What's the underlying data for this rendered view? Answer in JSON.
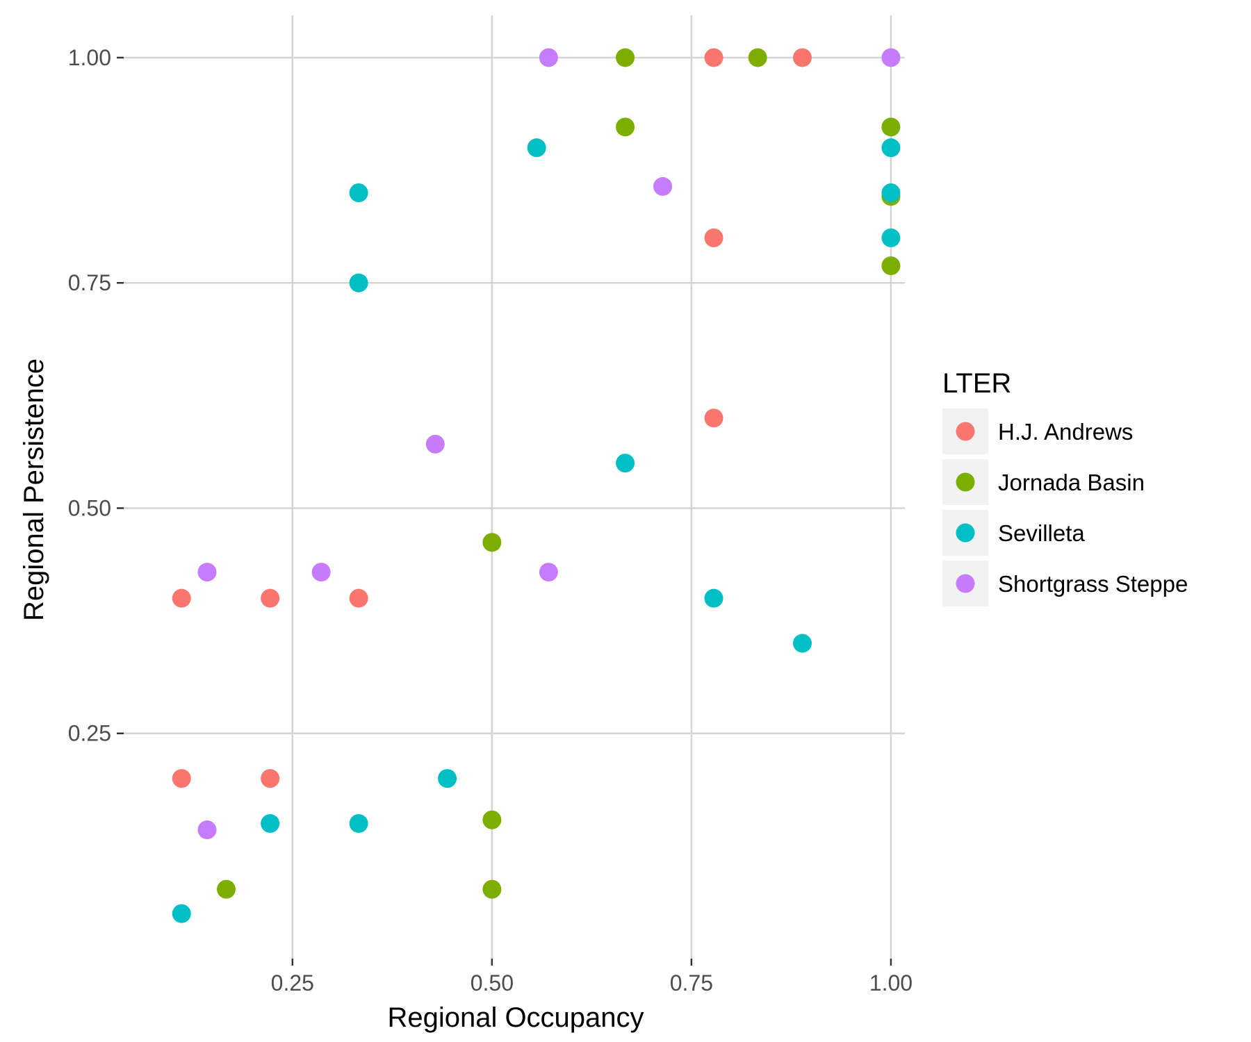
{
  "chart_data": {
    "type": "scatter",
    "title": "",
    "xlabel": "Regional Occupancy",
    "ylabel": "Regional Persistence",
    "xlim": [
      0.0385,
      1.0175
    ],
    "ylim": [
      0.0,
      1.047
    ],
    "xticks": [
      0.25,
      0.5,
      0.75,
      1.0
    ],
    "xtick_labels": [
      "0.25",
      "0.50",
      "0.75",
      "1.00"
    ],
    "yticks": [
      0.25,
      0.5,
      0.75,
      1.0
    ],
    "ytick_labels": [
      "0.25",
      "0.50",
      "0.75",
      "1.00"
    ],
    "grid": true,
    "legend": {
      "title": "LTER",
      "position": "right"
    },
    "series": [
      {
        "name": "H.J. Andrews",
        "color": "#F8766D",
        "points": [
          {
            "x": 0.111,
            "y": 0.4
          },
          {
            "x": 0.111,
            "y": 0.2
          },
          {
            "x": 0.222,
            "y": 0.4
          },
          {
            "x": 0.222,
            "y": 0.2
          },
          {
            "x": 0.333,
            "y": 0.4
          },
          {
            "x": 0.778,
            "y": 1.0
          },
          {
            "x": 0.778,
            "y": 0.8
          },
          {
            "x": 0.778,
            "y": 0.6
          },
          {
            "x": 0.889,
            "y": 1.0
          }
        ]
      },
      {
        "name": "Jornada Basin",
        "color": "#7CAE00",
        "points": [
          {
            "x": 0.667,
            "y": 1.0
          },
          {
            "x": 0.667,
            "y": 0.923
          },
          {
            "x": 0.833,
            "y": 1.0
          },
          {
            "x": 1.0,
            "y": 0.923
          },
          {
            "x": 1.0,
            "y": 0.846
          },
          {
            "x": 1.0,
            "y": 0.769
          },
          {
            "x": 0.5,
            "y": 0.462
          },
          {
            "x": 0.5,
            "y": 0.154
          },
          {
            "x": 0.5,
            "y": 0.077
          },
          {
            "x": 0.167,
            "y": 0.077
          }
        ]
      },
      {
        "name": "Sevilleta",
        "color": "#00BFC4",
        "points": [
          {
            "x": 0.556,
            "y": 0.9
          },
          {
            "x": 0.333,
            "y": 0.85
          },
          {
            "x": 0.333,
            "y": 0.75
          },
          {
            "x": 0.333,
            "y": 0.15
          },
          {
            "x": 1.0,
            "y": 0.9
          },
          {
            "x": 1.0,
            "y": 0.85
          },
          {
            "x": 1.0,
            "y": 0.8
          },
          {
            "x": 0.667,
            "y": 0.55
          },
          {
            "x": 0.778,
            "y": 0.4
          },
          {
            "x": 0.889,
            "y": 0.35
          },
          {
            "x": 0.444,
            "y": 0.2
          },
          {
            "x": 0.222,
            "y": 0.15
          },
          {
            "x": 0.111,
            "y": 0.05
          }
        ]
      },
      {
        "name": "Shortgrass Steppe",
        "color": "#C77CFF",
        "points": [
          {
            "x": 0.571,
            "y": 1.0
          },
          {
            "x": 1.0,
            "y": 1.0
          },
          {
            "x": 0.714,
            "y": 0.857
          },
          {
            "x": 0.429,
            "y": 0.571
          },
          {
            "x": 0.143,
            "y": 0.429
          },
          {
            "x": 0.286,
            "y": 0.429
          },
          {
            "x": 0.571,
            "y": 0.429
          },
          {
            "x": 0.143,
            "y": 0.143
          }
        ]
      }
    ]
  }
}
